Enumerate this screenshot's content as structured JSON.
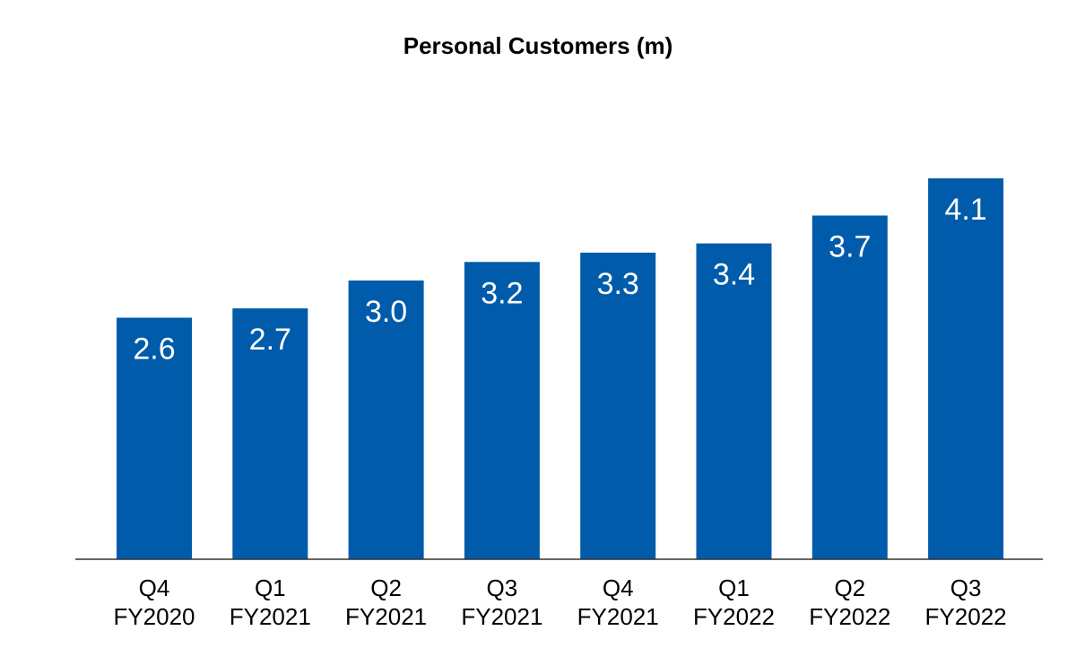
{
  "chart_data": {
    "type": "bar",
    "title": "Personal Customers (m)",
    "xlabel": "",
    "ylabel": "",
    "categories": [
      [
        "Q4",
        "FY2020"
      ],
      [
        "Q1",
        "FY2021"
      ],
      [
        "Q2",
        "FY2021"
      ],
      [
        "Q3",
        "FY2021"
      ],
      [
        "Q4",
        "FY2021"
      ],
      [
        "Q1",
        "FY2022"
      ],
      [
        "Q2",
        "FY2022"
      ],
      [
        "Q3",
        "FY2022"
      ]
    ],
    "values": [
      2.6,
      2.7,
      3.0,
      3.2,
      3.3,
      3.4,
      3.7,
      4.1
    ],
    "value_labels": [
      "2.6",
      "2.7",
      "3.0",
      "3.2",
      "3.3",
      "3.4",
      "3.7",
      "4.1"
    ],
    "ylim": [
      0,
      4.1
    ],
    "grid": false,
    "legend": "none",
    "colors": {
      "bar": "#005BAA",
      "baseline": "#333333"
    }
  }
}
